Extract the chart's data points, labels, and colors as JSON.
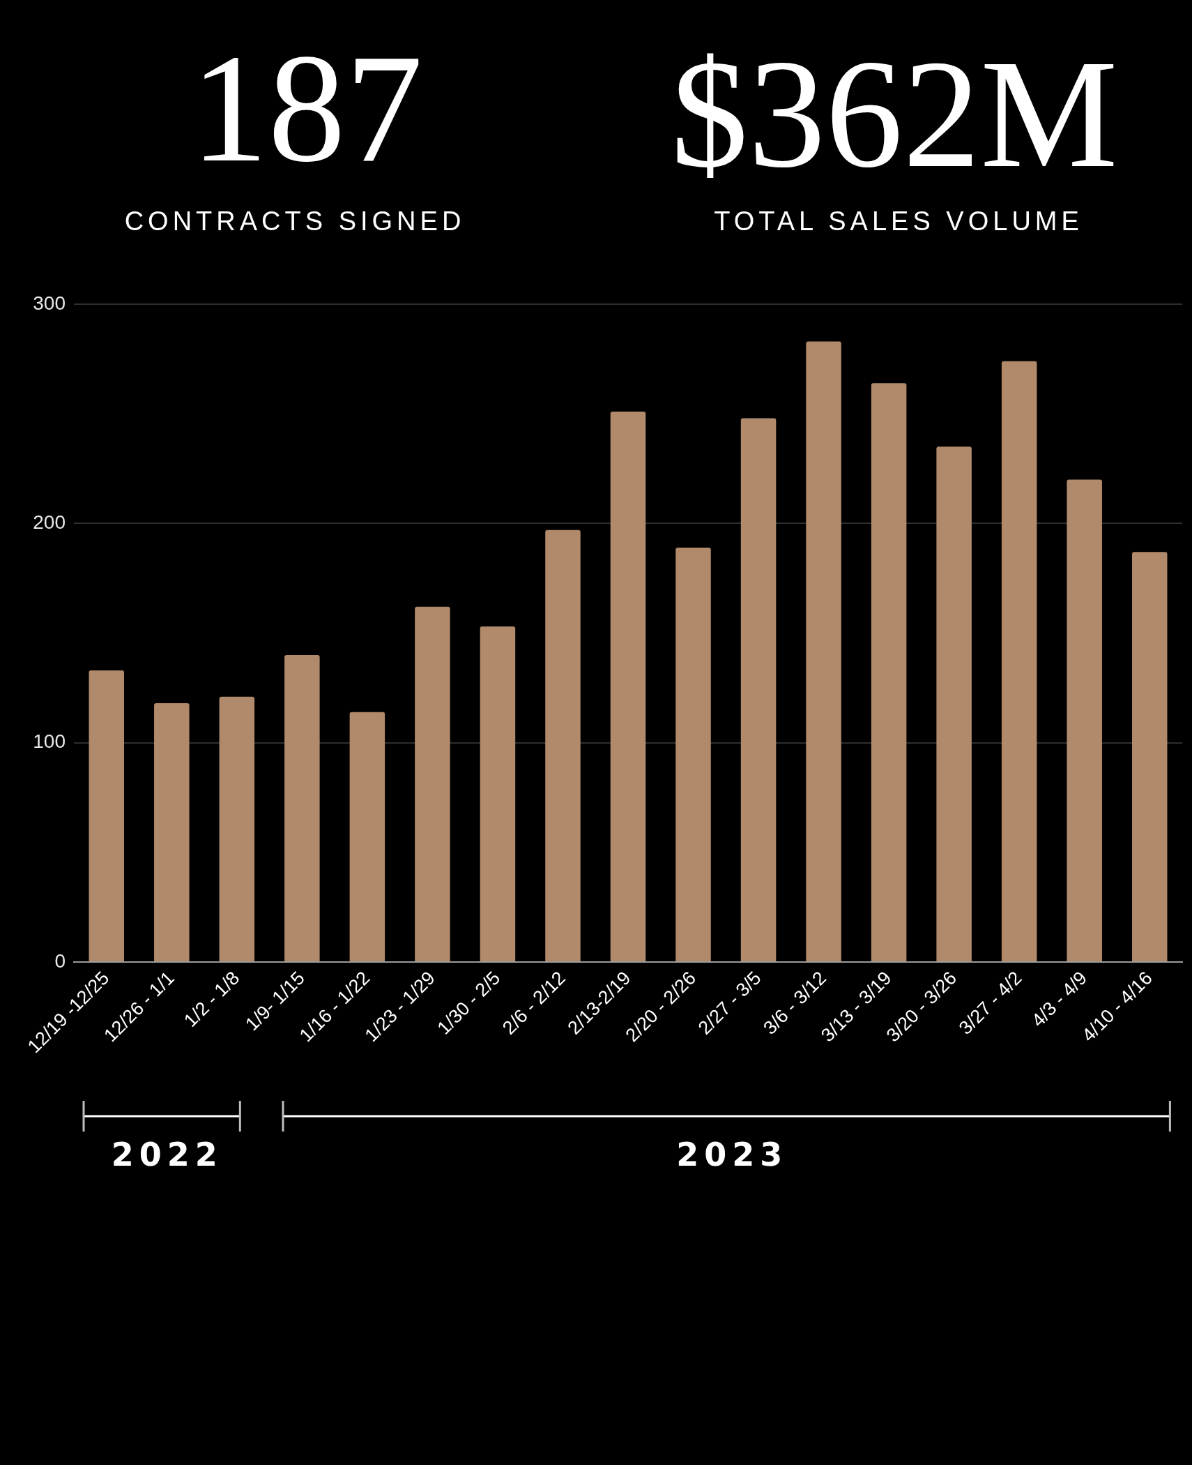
{
  "chart_data": {
    "type": "bar",
    "annotations": [
      "187",
      "CONTRACTS SIGNED",
      "$362M",
      "TOTAL SALES VOLUME",
      "2022",
      "2023"
    ],
    "categories": [
      "12/19 -12/25",
      "12/26 - 1/1",
      "1/2 - 1/8",
      "1/9- 1/15",
      "1/16 - 1/22",
      "1/23 - 1/29",
      "1/30 - 2/5",
      "2/6 - 2/12",
      "2/13-2/19",
      "2/20 - 2/26",
      "2/27 - 3/5",
      "3/6 - 3/12",
      "3/13 - 3/19",
      "3/20 - 3/26",
      "3/27 - 4/2",
      "4/3 - 4/9",
      "4/10 - 4/16"
    ],
    "values": [
      133,
      118,
      121,
      140,
      114,
      162,
      153,
      197,
      251,
      189,
      248,
      283,
      264,
      235,
      274,
      220,
      187
    ],
    "color": "#b08a6b",
    "ylim": [
      0,
      300
    ],
    "yticks": [
      0,
      100,
      200,
      300
    ],
    "grid": "y"
  }
}
